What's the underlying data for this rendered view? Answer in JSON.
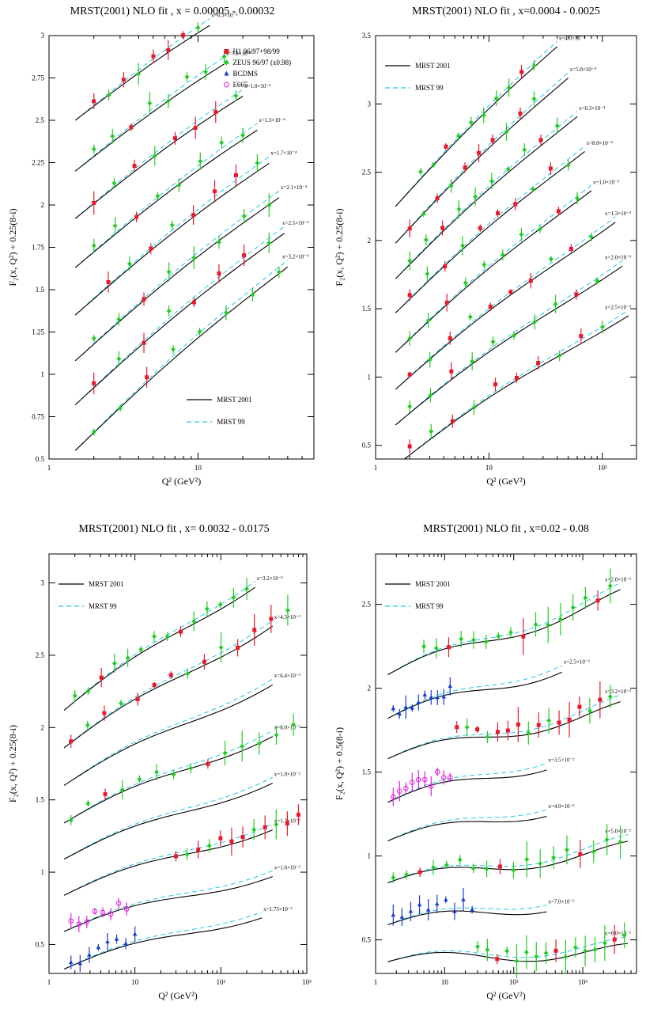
{
  "chart_data": [
    {
      "type": "line",
      "title": "MRST(2001) NLO fit , x = 0.00005 - 0.00032",
      "xlabel": "Q² (GeV²)",
      "ylabel": "F₂(x, Q²) + 0.25(8-i)",
      "xscale": "log",
      "xlim": [
        1,
        60
      ],
      "ylim": [
        0.5,
        3.0
      ],
      "xticks": [
        {
          "v": 1,
          "label": "1"
        },
        {
          "v": 10,
          "label": "10"
        }
      ],
      "yticks": [
        {
          "v": 0.5,
          "label": "0.5"
        },
        {
          "v": 0.75,
          "label": "0.75"
        },
        {
          "v": 1,
          "label": "1"
        },
        {
          "v": 1.25,
          "label": "1.25"
        },
        {
          "v": 1.5,
          "label": "1.5"
        },
        {
          "v": 1.75,
          "label": "1.75"
        },
        {
          "v": 2,
          "label": "2"
        },
        {
          "v": 2.25,
          "label": "2.25"
        },
        {
          "v": 2.5,
          "label": "2.5"
        },
        {
          "v": 2.75,
          "label": "2.75"
        },
        {
          "v": 3,
          "label": "3"
        }
      ],
      "curve_labels": [
        "x=6.3×10⁻⁵",
        "x=7.8×10⁻⁵",
        "x=1.0×10⁻⁴",
        "x=1.3×10⁻⁴",
        "x=1.7×10⁻⁴",
        "x=2.1×10⁻⁴",
        "x=2.5×10⁻⁴",
        "x=3.2×10⁻⁴"
      ],
      "curves": [
        {
          "q0": 1.5,
          "q1": 12,
          "a": 2.5,
          "b": 0.58
        },
        {
          "q0": 1.5,
          "q1": 15,
          "a": 2.2,
          "b": 0.6
        },
        {
          "q0": 1.5,
          "q1": 20,
          "a": 1.92,
          "b": 0.62
        },
        {
          "q0": 1.5,
          "q1": 25,
          "a": 1.63,
          "b": 0.65
        },
        {
          "q0": 1.5,
          "q1": 30,
          "a": 1.35,
          "b": 0.68
        },
        {
          "q0": 1.5,
          "q1": 35,
          "a": 1.08,
          "b": 0.7
        },
        {
          "q0": 1.5,
          "q1": 38,
          "a": 0.82,
          "b": 0.72
        },
        {
          "q0": 1.5,
          "q1": 40,
          "a": 0.55,
          "b": 0.76
        }
      ],
      "legend_position": "top-right",
      "legend_data": [
        {
          "label": "H1 96/97+98/99",
          "color": "#e8192c",
          "shape": "square"
        },
        {
          "label": "ZEUS 96/97 (x0.98)",
          "color": "#22cc22",
          "shape": "diamond"
        },
        {
          "label": "BCDMS",
          "color": "#1a3ccc",
          "shape": "star"
        },
        {
          "label": "E665",
          "color": "#e020e0",
          "shape": "circle"
        }
      ],
      "legend_lines": [
        {
          "label": "MRST 2001",
          "style": "solid",
          "color": "#000000"
        },
        {
          "label": "MRST 99",
          "style": "dashed",
          "color": "#22c8e8"
        }
      ],
      "point_sets": [
        {
          "ci": 0,
          "x0": 2,
          "x1": 10,
          "n": 8,
          "gap": 0.25,
          "col": 0
        },
        {
          "ci": 1,
          "x0": 2,
          "x1": 15,
          "n": 8,
          "gap": 0.22,
          "col": 1
        },
        {
          "ci": 2,
          "x0": 2,
          "x1": 18,
          "n": 8,
          "gap": 0.22,
          "col": 0
        },
        {
          "ci": 3,
          "x0": 2,
          "x1": 20,
          "n": 8,
          "gap": 0.25,
          "col": 1
        },
        {
          "ci": 4,
          "x0": 2.5,
          "x1": 25,
          "n": 8,
          "gap": 0.22,
          "col": 0
        },
        {
          "ci": 5,
          "x0": 2,
          "x1": 30,
          "n": 8,
          "gap": 0.25,
          "col": 1
        },
        {
          "ci": 6,
          "x0": 2,
          "x1": 30,
          "n": 8,
          "gap": 0.22,
          "col": 0
        },
        {
          "ci": 7,
          "x0": 2,
          "x1": 35,
          "n": 8,
          "gap": 0.25,
          "col": 1
        }
      ]
    },
    {
      "type": "line",
      "title": "MRST(2001) NLO fit , x=0.0004 - 0.0025",
      "xlabel": "Q² (GeV²)",
      "ylabel": "F₂(x, Q²) + 0.25(8-i)",
      "xscale": "log",
      "xlim": [
        1,
        200
      ],
      "ylim": [
        0.4,
        3.5
      ],
      "xticks": [
        {
          "v": 1,
          "label": "1"
        },
        {
          "v": 10,
          "label": "10"
        },
        {
          "v": 100,
          "label": "10²"
        }
      ],
      "yticks": [
        {
          "v": 0.5,
          "label": "0.5"
        },
        {
          "v": 1,
          "label": "1"
        },
        {
          "v": 1.5,
          "label": "1.5"
        },
        {
          "v": 2,
          "label": "2"
        },
        {
          "v": 2.5,
          "label": "2.5"
        },
        {
          "v": 3,
          "label": "3"
        },
        {
          "v": 3.5,
          "label": "3.5"
        }
      ],
      "curve_labels": [
        "x=4.0×10⁻⁴",
        "x=5.0×10⁻⁴",
        "x=6.3×10⁻⁴",
        "x=8.0×10⁻⁴",
        "x=1.0×10⁻³",
        "x=1.3×10⁻³",
        "x=2.0×10⁻³",
        "x=2.5×10⁻³"
      ],
      "curves": [
        {
          "q0": 1.5,
          "q1": 40,
          "a": 2.25,
          "b": 0.82
        },
        {
          "q0": 1.5,
          "q1": 50,
          "a": 1.98,
          "b": 0.8
        },
        {
          "q0": 1.5,
          "q1": 60,
          "a": 1.72,
          "b": 0.75
        },
        {
          "q0": 1.5,
          "q1": 70,
          "a": 1.47,
          "b": 0.72
        },
        {
          "q0": 1.5,
          "q1": 80,
          "a": 1.18,
          "b": 0.7
        },
        {
          "q0": 1.5,
          "q1": 130,
          "a": 0.91,
          "b": 0.65
        },
        {
          "q0": 1.5,
          "q1": 150,
          "a": 0.65,
          "b": 0.6
        },
        {
          "q0": 1.8,
          "q1": 170,
          "a": 0.4,
          "b": 0.55
        }
      ],
      "legend_position": "top-left",
      "legend_data": [],
      "legend_lines": [
        {
          "label": "MRST 2001",
          "style": "solid",
          "color": "#000000"
        },
        {
          "label": "MRST 99",
          "style": "dashed",
          "color": "#22c8e8"
        }
      ],
      "point_sets": [
        {
          "ci": 0,
          "x0": 2.5,
          "x1": 25,
          "n": 10,
          "gap": 0.3,
          "col": 1
        },
        {
          "ci": 1,
          "x0": 2,
          "x1": 25,
          "n": 10,
          "gap": 0.28,
          "col": 0
        },
        {
          "ci": 2,
          "x0": 2,
          "x1": 40,
          "n": 10,
          "gap": 0.28,
          "col": 1
        },
        {
          "ci": 3,
          "x0": 2,
          "x1": 50,
          "n": 10,
          "gap": 0.28,
          "col": 0
        },
        {
          "ci": 4,
          "x0": 2,
          "x1": 60,
          "n": 10,
          "gap": 0.28,
          "col": 1
        },
        {
          "ci": 5,
          "x0": 2,
          "x1": 80,
          "n": 10,
          "gap": 0.28,
          "col": 0
        },
        {
          "ci": 6,
          "x0": 2,
          "x1": 90,
          "n": 10,
          "gap": 0.28,
          "col": 1
        },
        {
          "ci": 7,
          "x0": 2,
          "x1": 100,
          "n": 10,
          "gap": 0.28,
          "col": 0
        }
      ]
    },
    {
      "type": "line",
      "title": "MRST(2001) NLO fit , x= 0.0032 - 0.0175",
      "xlabel": "Q² (GeV²)",
      "ylabel": "F₂(x, Q²) + 0.25(8-i)",
      "xscale": "log",
      "xlim": [
        1,
        1000
      ],
      "ylim": [
        0.3,
        3.2
      ],
      "xticks": [
        {
          "v": 1,
          "label": "1"
        },
        {
          "v": 10,
          "label": "10"
        },
        {
          "v": 100,
          "label": "10²"
        },
        {
          "v": 1000,
          "label": "10³"
        }
      ],
      "yticks": [
        {
          "v": 0.5,
          "label": "0.5"
        },
        {
          "v": 1,
          "label": "1"
        },
        {
          "v": 1.5,
          "label": "1.5"
        },
        {
          "v": 2,
          "label": "2"
        },
        {
          "v": 2.5,
          "label": "2.5"
        },
        {
          "v": 3,
          "label": "3"
        }
      ],
      "curve_labels": [
        "x=3.2×10⁻³",
        "x=4.5×10⁻³",
        "x=6.4×10⁻³",
        "x=8.0×10⁻³",
        "x=1.0×10⁻²",
        "x=1.3×10⁻²",
        "x=1.6×10⁻²",
        "x=1.75×10⁻²"
      ],
      "curves": [
        {
          "q0": 1.5,
          "q1": 250,
          "a": 2.12,
          "b": 0.4
        },
        {
          "q0": 1.5,
          "q1": 400,
          "a": 1.86,
          "b": 0.36
        },
        {
          "q0": 1.5,
          "q1": 400,
          "a": 1.6,
          "b": 0.3
        },
        {
          "q0": 1.5,
          "q1": 400,
          "a": 1.34,
          "b": 0.26
        },
        {
          "q0": 1.5,
          "q1": 400,
          "a": 1.09,
          "b": 0.23
        },
        {
          "q0": 1.5,
          "q1": 400,
          "a": 0.84,
          "b": 0.2
        },
        {
          "q0": 1.5,
          "q1": 400,
          "a": 0.59,
          "b": 0.17
        },
        {
          "q0": 1.5,
          "q1": 300,
          "a": 0.33,
          "b": 0.17
        }
      ],
      "legend_position": "top-left",
      "legend_data": [],
      "legend_lines": [
        {
          "label": "MRST 2001",
          "style": "solid",
          "color": "#000000"
        },
        {
          "label": "MRST 99",
          "style": "dashed",
          "color": "#22c8e8"
        }
      ],
      "point_sets": [
        {
          "ci": 0,
          "x0": 2,
          "x1": 200,
          "n": 14,
          "gap": 0.2,
          "col": 1
        },
        {
          "ci": 1,
          "x0": 1.8,
          "x1": 600,
          "n": 14,
          "gap": 0.2,
          "col": 0
        },
        {
          "ci": 3,
          "x0": 1.8,
          "x1": 700,
          "n": 14,
          "gap": 0.2,
          "col": 1
        },
        {
          "ci": 5,
          "x0": 30,
          "x1": 800,
          "n": 12,
          "gap": 0.15,
          "col": 0
        },
        {
          "ci": 6,
          "x0": 1.8,
          "x1": 8,
          "n": 8,
          "gap": 0.3,
          "col": 3
        },
        {
          "ci": 7,
          "x0": 1.8,
          "x1": 10,
          "n": 8,
          "gap": 0.3,
          "col": 2
        }
      ]
    },
    {
      "type": "line",
      "title": "MRST(2001) NLO fit , x=0.02 - 0.08",
      "xlabel": "Q² (GeV²)",
      "ylabel": "F₂(x, Q²) + 0.5(8-i)",
      "xscale": "log",
      "xlim": [
        1,
        6000
      ],
      "ylim": [
        0.3,
        2.8
      ],
      "xticks": [
        {
          "v": 1,
          "label": "1"
        },
        {
          "v": 10,
          "label": "10"
        },
        {
          "v": 100,
          "label": "10²"
        },
        {
          "v": 1000,
          "label": "10³"
        }
      ],
      "yticks": [
        {
          "v": 0.5,
          "label": "0.5"
        },
        {
          "v": 1,
          "label": "1"
        },
        {
          "v": 1.5,
          "label": "1.5"
        },
        {
          "v": 2,
          "label": "2"
        },
        {
          "v": 2.5,
          "label": "2.5"
        }
      ],
      "curve_labels": [
        "x=2.0×10⁻²",
        "x=2.5×10⁻²",
        "x=3.2×10⁻²",
        "x=3.5×10⁻²",
        "x=4.0×10⁻²",
        "x=5.0×10⁻²",
        "x=7.0×10⁻²",
        "x=8.0×10⁻²"
      ],
      "curves": [
        {
          "q0": 1.5,
          "q1": 3500,
          "a": 2.08,
          "b": 0.14
        },
        {
          "q0": 1.5,
          "q1": 500,
          "a": 1.82,
          "b": 0.12
        },
        {
          "q0": 1.5,
          "q1": 3500,
          "a": 1.58,
          "b": 0.09
        },
        {
          "q0": 1.5,
          "q1": 300,
          "a": 1.32,
          "b": 0.1
        },
        {
          "q0": 1.5,
          "q1": 300,
          "a": 1.09,
          "b": 0.08
        },
        {
          "q0": 1.5,
          "q1": 4500,
          "a": 0.84,
          "b": 0.06
        },
        {
          "q0": 1.5,
          "q1": 300,
          "a": 0.59,
          "b": 0.05
        },
        {
          "q0": 1.5,
          "q1": 4500,
          "a": 0.37,
          "b": 0.02
        }
      ],
      "legend_position": "top-left",
      "legend_data": [],
      "legend_lines": [
        {
          "label": "MRST 2001",
          "style": "solid",
          "color": "#000000"
        },
        {
          "label": "MRST 99",
          "style": "dashed",
          "color": "#22c8e8"
        }
      ],
      "point_sets": [
        {
          "ci": 0,
          "x0": 5,
          "x1": 2500,
          "n": 16,
          "gap": 0.1,
          "col": 1
        },
        {
          "ci": 1,
          "x0": 1.8,
          "x1": 12,
          "n": 10,
          "gap": 0.3,
          "col": 2
        },
        {
          "ci": 2,
          "x0": 15,
          "x1": 2500,
          "n": 16,
          "gap": 0.1,
          "col": 0
        },
        {
          "ci": 3,
          "x0": 1.8,
          "x1": 12,
          "n": 10,
          "gap": 0.3,
          "col": 3
        },
        {
          "ci": 5,
          "x0": 1.8,
          "x1": 3500,
          "n": 18,
          "gap": 0.1,
          "col": 1
        },
        {
          "ci": 6,
          "x0": 1.8,
          "x1": 25,
          "n": 10,
          "gap": 0.3,
          "col": 2
        },
        {
          "ci": 7,
          "x0": 30,
          "x1": 4000,
          "n": 16,
          "gap": 0.1,
          "col": 1
        }
      ]
    }
  ]
}
